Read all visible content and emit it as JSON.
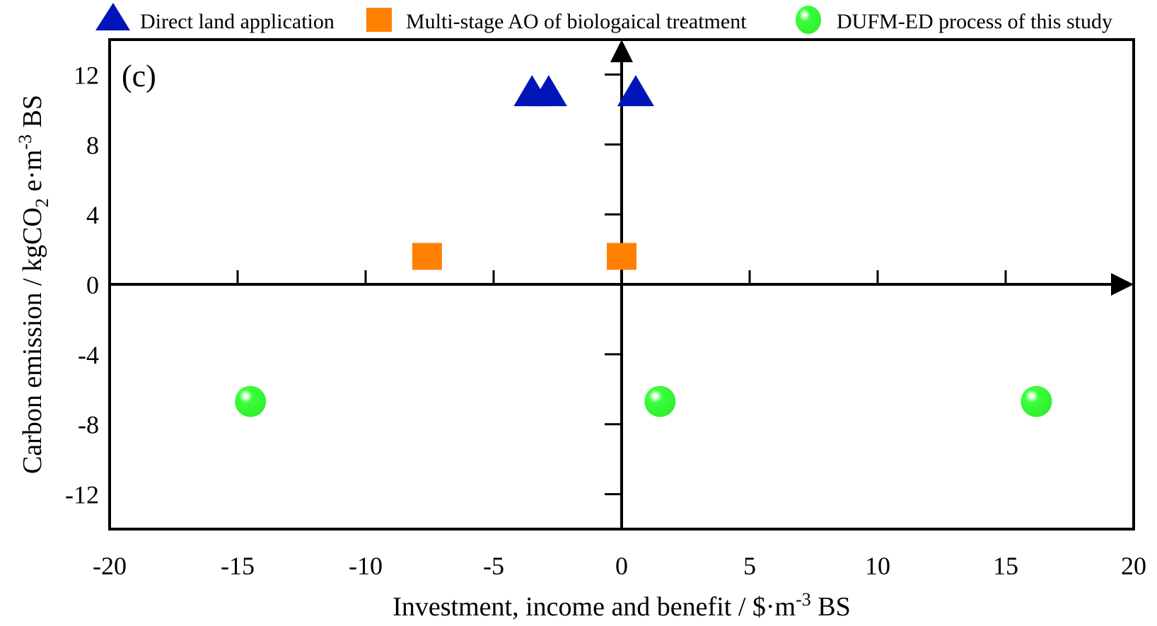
{
  "chart_data": {
    "type": "scatter",
    "panel_label": "(c)",
    "xlabel": {
      "main": "Investment, income and benefit / $·m",
      "sup": "-3",
      "tail": " BS"
    },
    "ylabel": {
      "main": "Carbon emission / kgCO",
      "sub": "2",
      "mid": " e·m",
      "sup": "-3",
      "tail": " BS"
    },
    "xlim": [
      -20,
      20
    ],
    "ylim": [
      -14,
      14
    ],
    "xticks": [
      -20,
      -15,
      -10,
      -5,
      0,
      5,
      10,
      15,
      20
    ],
    "xtick_labels": [
      "-20",
      "-15",
      "-10",
      "-5",
      "0",
      "5",
      "10",
      "15",
      "20"
    ],
    "yticks": [
      -12,
      -8,
      -4,
      0,
      4,
      8,
      12
    ],
    "ytick_labels": [
      "-12",
      "-8",
      "-4",
      "0",
      "4",
      "8",
      "12"
    ],
    "grid": false,
    "legend_placement": "top",
    "series": [
      {
        "name": "Direct land application",
        "marker": "triangle",
        "color": "#0016b8",
        "points": [
          {
            "x": -3.5,
            "y": 11.0
          },
          {
            "x": -2.85,
            "y": 11.0
          },
          {
            "x": 0.55,
            "y": 11.0
          }
        ]
      },
      {
        "name": "Multi-stage AO of biologaical treatment",
        "marker": "square",
        "color": "#ff8000",
        "points": [
          {
            "x": -7.6,
            "y": 1.6
          },
          {
            "x": 0.0,
            "y": 1.6
          }
        ]
      },
      {
        "name": "DUFM-ED process of this study",
        "marker": "sphere",
        "color": "#3cff3c",
        "points": [
          {
            "x": -14.5,
            "y": -6.7
          },
          {
            "x": 1.5,
            "y": -6.7
          },
          {
            "x": 16.2,
            "y": -6.7
          }
        ]
      }
    ]
  }
}
